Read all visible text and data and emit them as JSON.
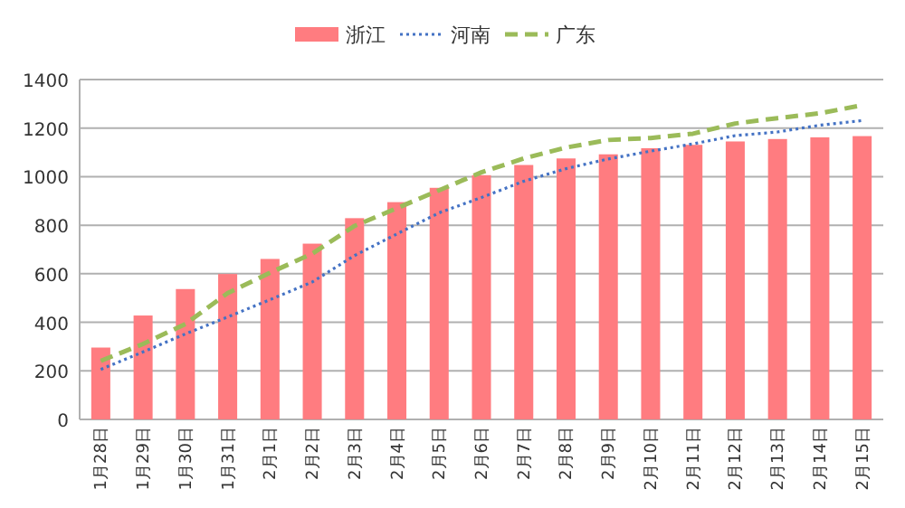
{
  "chart_data": {
    "type": "bar",
    "categories": [
      "1月28日",
      "1月29日",
      "1月30日",
      "1月31日",
      "2月1日",
      "2月2日",
      "2月3日",
      "2月4日",
      "2月5日",
      "2月6日",
      "2月7日",
      "2月8日",
      "2月9日",
      "2月10日",
      "2月11日",
      "2月12日",
      "2月13日",
      "2月14日",
      "2月15日"
    ],
    "series": [
      {
        "name": "浙江",
        "color": "#ff7c80",
        "values": [
          296,
          428,
          537,
          599,
          661,
          724,
          829,
          895,
          954,
          1006,
          1048,
          1075,
          1092,
          1117,
          1131,
          1145,
          1155,
          1162,
          1167
        ]
      },
      {
        "name": "河南",
        "type": "line",
        "line_style": "dotted",
        "color": "#4472c4",
        "values": [
          206,
          278,
          352,
          422,
          493,
          566,
          675,
          764,
          851,
          914,
          981,
          1033,
          1073,
          1105,
          1135,
          1169,
          1184,
          1212,
          1231
        ]
      },
      {
        "name": "广东",
        "type": "line",
        "line_style": "dashed",
        "color": "#9bbb59",
        "values": [
          241,
          311,
          393,
          520,
          604,
          683,
          797,
          870,
          944,
          1018,
          1075,
          1120,
          1151,
          1159,
          1177,
          1219,
          1241,
          1261,
          1294
        ]
      }
    ],
    "ylim": [
      0,
      1400
    ],
    "yticks": [
      0,
      200,
      400,
      600,
      800,
      1000,
      1200,
      1400
    ],
    "grid": "y",
    "legend": "top"
  }
}
